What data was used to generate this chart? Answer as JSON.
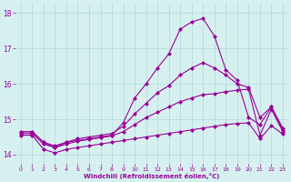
{
  "xlabel": "Windchill (Refroidissement éolien,°C)",
  "background_color": "#d6f0f0",
  "line_color": "#990099",
  "grid_color": "#b0d8d8",
  "xlim": [
    -0.5,
    23.5
  ],
  "ylim": [
    13.75,
    18.3
  ],
  "yticks": [
    14,
    15,
    16,
    17,
    18
  ],
  "xticks": [
    0,
    1,
    2,
    3,
    4,
    5,
    6,
    7,
    8,
    9,
    10,
    11,
    12,
    13,
    14,
    15,
    16,
    17,
    18,
    19,
    20,
    21,
    22,
    23
  ],
  "series": [
    {
      "x": [
        0,
        1,
        2,
        3,
        4,
        5,
        6,
        7,
        8,
        9,
        10,
        11,
        12,
        13,
        14,
        15,
        16,
        17,
        18,
        19,
        20,
        21,
        22,
        23
      ],
      "y": [
        14.65,
        14.65,
        14.35,
        14.2,
        14.35,
        14.4,
        14.45,
        14.5,
        14.55,
        14.9,
        15.6,
        16.0,
        16.45,
        16.85,
        17.55,
        17.75,
        17.85,
        17.35,
        16.4,
        16.1,
        15.05,
        14.85,
        15.35,
        14.75
      ]
    },
    {
      "x": [
        0,
        1,
        2,
        3,
        4,
        5,
        6,
        7,
        8,
        9,
        10,
        11,
        12,
        13,
        14,
        15,
        16,
        17,
        18,
        19,
        20,
        21,
        22,
        23
      ],
      "y": [
        14.65,
        14.65,
        14.35,
        14.25,
        14.35,
        14.45,
        14.5,
        14.55,
        14.6,
        14.8,
        15.15,
        15.45,
        15.75,
        15.95,
        16.25,
        16.45,
        16.6,
        16.45,
        16.25,
        16.0,
        15.9,
        15.05,
        15.35,
        14.7
      ]
    },
    {
      "x": [
        0,
        1,
        2,
        3,
        4,
        5,
        6,
        7,
        8,
        9,
        10,
        11,
        12,
        13,
        14,
        15,
        16,
        17,
        18,
        19,
        20,
        21,
        22,
        23
      ],
      "y": [
        14.6,
        14.6,
        14.3,
        14.2,
        14.3,
        14.38,
        14.43,
        14.48,
        14.53,
        14.65,
        14.85,
        15.05,
        15.2,
        15.35,
        15.5,
        15.6,
        15.7,
        15.72,
        15.78,
        15.82,
        15.85,
        14.55,
        15.28,
        14.65
      ]
    },
    {
      "x": [
        0,
        1,
        2,
        3,
        4,
        5,
        6,
        7,
        8,
        9,
        10,
        11,
        12,
        13,
        14,
        15,
        16,
        17,
        18,
        19,
        20,
        21,
        22,
        23
      ],
      "y": [
        14.55,
        14.55,
        14.15,
        14.05,
        14.15,
        14.2,
        14.25,
        14.3,
        14.35,
        14.4,
        14.45,
        14.5,
        14.55,
        14.6,
        14.65,
        14.7,
        14.75,
        14.8,
        14.85,
        14.88,
        14.9,
        14.45,
        14.82,
        14.58
      ]
    }
  ]
}
